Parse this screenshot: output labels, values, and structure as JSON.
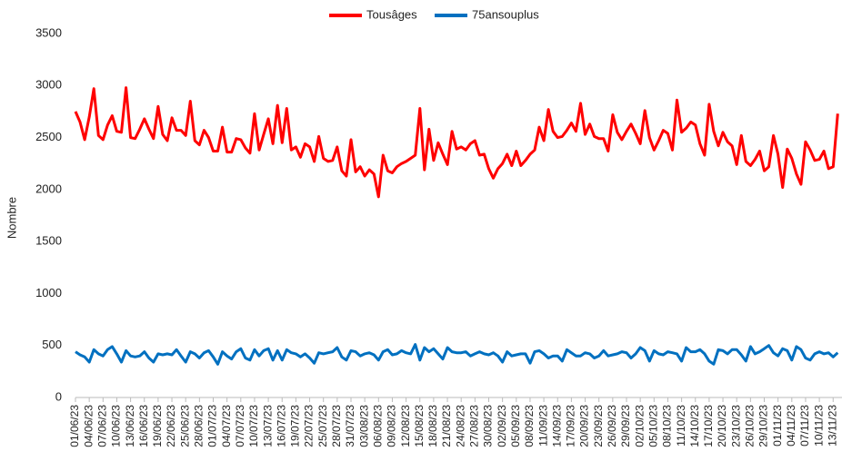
{
  "chart_data": {
    "type": "line",
    "y_label": "Nombre",
    "categories": [
      "01/06/23",
      null,
      null,
      "04/06/23",
      null,
      null,
      "07/06/23",
      null,
      null,
      "10/06/23",
      null,
      null,
      "13/06/23",
      null,
      null,
      "16/06/23",
      null,
      null,
      "19/06/23",
      null,
      null,
      "22/06/23",
      null,
      null,
      "25/06/23",
      null,
      null,
      "28/06/23",
      null,
      null,
      "01/07/23",
      null,
      null,
      "04/07/23",
      null,
      null,
      "07/07/23",
      null,
      null,
      "10/07/23",
      null,
      null,
      "13/07/23",
      null,
      null,
      "16/07/23",
      null,
      null,
      "19/07/23",
      null,
      null,
      "22/07/23",
      null,
      null,
      "25/07/23",
      null,
      null,
      "28/07/23",
      null,
      null,
      "31/07/23",
      null,
      null,
      "03/08/23",
      null,
      null,
      "06/08/23",
      null,
      null,
      "09/08/23",
      null,
      null,
      "12/08/23",
      null,
      null,
      "15/08/23",
      null,
      null,
      "18/08/23",
      null,
      null,
      "21/08/23",
      null,
      null,
      "24/08/23",
      null,
      null,
      "27/08/23",
      null,
      null,
      "30/08/23",
      null,
      null,
      "02/09/23",
      null,
      null,
      "05/09/23",
      null,
      null,
      "08/09/23",
      null,
      null,
      "11/09/23",
      null,
      null,
      "14/09/23",
      null,
      null,
      "17/09/23",
      null,
      null,
      "20/09/23",
      null,
      null,
      "23/09/23",
      null,
      null,
      "26/09/23",
      null,
      null,
      "29/09/23",
      null,
      null,
      "02/10/23",
      null,
      null,
      "05/10/23",
      null,
      null,
      "08/10/23",
      null,
      null,
      "11/10/23",
      null,
      null,
      "14/10/23",
      null,
      null,
      "17/10/23",
      null,
      null,
      "20/10/23",
      null,
      null,
      "23/10/23",
      null,
      null,
      "26/10/23",
      null,
      null,
      "29/10/23",
      null,
      null,
      "01/11/23",
      null,
      null,
      "04/11/23",
      null,
      null,
      "07/11/23",
      null,
      null,
      "10/11/23",
      null,
      null,
      "13/11/23",
      null
    ],
    "series": [
      {
        "name": "Tousâges",
        "color": "#ff0000",
        "values": [
          2750,
          2650,
          2480,
          2700,
          2970,
          2520,
          2480,
          2620,
          2710,
          2560,
          2550,
          2980,
          2500,
          2490,
          2580,
          2680,
          2580,
          2490,
          2800,
          2530,
          2470,
          2690,
          2570,
          2570,
          2520,
          2850,
          2470,
          2430,
          2570,
          2500,
          2370,
          2370,
          2600,
          2360,
          2360,
          2490,
          2480,
          2400,
          2350,
          2730,
          2380,
          2530,
          2680,
          2440,
          2810,
          2450,
          2780,
          2380,
          2410,
          2310,
          2440,
          2410,
          2270,
          2510,
          2300,
          2270,
          2280,
          2410,
          2180,
          2130,
          2480,
          2170,
          2220,
          2130,
          2190,
          2150,
          1930,
          2330,
          2180,
          2160,
          2220,
          2250,
          2270,
          2300,
          2330,
          2780,
          2190,
          2580,
          2280,
          2450,
          2340,
          2240,
          2560,
          2390,
          2410,
          2380,
          2440,
          2470,
          2330,
          2340,
          2200,
          2110,
          2200,
          2250,
          2340,
          2230,
          2370,
          2230,
          2280,
          2340,
          2380,
          2600,
          2470,
          2770,
          2560,
          2500,
          2510,
          2570,
          2640,
          2560,
          2830,
          2530,
          2630,
          2510,
          2490,
          2490,
          2370,
          2720,
          2550,
          2480,
          2560,
          2630,
          2540,
          2440,
          2760,
          2500,
          2380,
          2470,
          2570,
          2540,
          2380,
          2860,
          2550,
          2590,
          2650,
          2620,
          2440,
          2330,
          2820,
          2560,
          2420,
          2550,
          2460,
          2420,
          2240,
          2520,
          2270,
          2230,
          2290,
          2370,
          2180,
          2220,
          2520,
          2340,
          2020,
          2390,
          2300,
          2150,
          2050,
          2460,
          2380,
          2280,
          2290,
          2370,
          2200,
          2220,
          2730
        ]
      },
      {
        "name": "75ansouplus",
        "color": "#0070c0",
        "values": [
          440,
          410,
          390,
          340,
          460,
          420,
          400,
          460,
          490,
          420,
          340,
          450,
          400,
          390,
          400,
          440,
          380,
          340,
          420,
          410,
          420,
          410,
          460,
          400,
          340,
          440,
          420,
          380,
          430,
          450,
          390,
          320,
          440,
          400,
          370,
          440,
          470,
          380,
          360,
          460,
          400,
          450,
          470,
          360,
          450,
          360,
          460,
          430,
          420,
          390,
          420,
          380,
          330,
          430,
          420,
          430,
          440,
          480,
          390,
          360,
          450,
          440,
          400,
          420,
          430,
          410,
          360,
          440,
          460,
          410,
          420,
          450,
          430,
          420,
          510,
          360,
          480,
          440,
          470,
          420,
          370,
          480,
          440,
          430,
          430,
          440,
          400,
          420,
          440,
          420,
          410,
          430,
          400,
          340,
          440,
          400,
          410,
          420,
          420,
          330,
          440,
          450,
          420,
          380,
          400,
          400,
          350,
          460,
          430,
          400,
          400,
          430,
          420,
          380,
          400,
          450,
          400,
          410,
          420,
          440,
          430,
          380,
          420,
          480,
          450,
          350,
          450,
          420,
          410,
          440,
          430,
          420,
          350,
          480,
          440,
          440,
          460,
          420,
          350,
          320,
          460,
          450,
          420,
          460,
          460,
          410,
          350,
          490,
          420,
          440,
          470,
          500,
          430,
          400,
          470,
          450,
          360,
          490,
          460,
          380,
          360,
          420,
          440,
          420,
          430,
          390,
          430
        ]
      }
    ],
    "ylim": [
      0,
      3500
    ],
    "yticks": [
      0,
      500,
      1000,
      1500,
      2000,
      2500,
      3000,
      3500
    ],
    "grid": false,
    "legend": "top"
  }
}
